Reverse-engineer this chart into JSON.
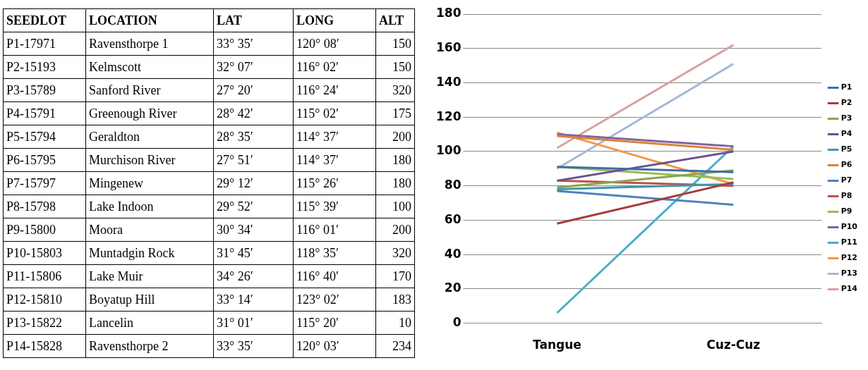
{
  "chart_data": [
    {
      "type": "other",
      "annotations": [
        "SEEDLOT",
        "LOCATION",
        "LAT",
        "LONG",
        "ALT",
        "P1-17971",
        "Ravensthorpe 1",
        "33° 35′",
        "120° 08′",
        "150",
        "P2-15193",
        "Kelmscott",
        "32° 07′",
        "116° 02′",
        "150",
        "P3-15789",
        "Sanford River",
        "27° 20′",
        "116° 24′",
        "320",
        "P4-15791",
        "Greenough River",
        "28° 42′",
        "115° 02′",
        "175",
        "P5-15794",
        "Geraldton",
        "28° 35′",
        "114° 37′",
        "200",
        "P6-15795",
        "Murchison River",
        "27° 51′",
        "114° 37′",
        "180",
        "P7-15797",
        "Mingenew",
        "29° 12′",
        "115° 26′",
        "180",
        "P8-15798",
        "Lake Indoon",
        "29° 52′",
        "115° 39′",
        "100",
        "P9-15800",
        "Moora",
        "30° 34′",
        "116° 01′",
        "200",
        "P10-15803",
        "Muntadgin Rock",
        "31° 45′",
        "118° 35′",
        "320",
        "P11-15806",
        "Lake Muir",
        "34° 26′",
        "116° 40′",
        "170",
        "P12-15810",
        "Boyatup Hill",
        "33° 14′",
        "123° 02′",
        "183",
        "P13-15822",
        "Lancelin",
        "31° 01′",
        "115° 20′",
        "10",
        "P14-15828",
        "Ravensthorpe 2",
        "33° 35′",
        "120° 03′",
        "234"
      ]
    },
    {
      "type": "line",
      "categories": [
        "Tangue",
        "Cuz-Cuz"
      ],
      "ylim": [
        0,
        180
      ],
      "yticks": [
        0,
        20,
        40,
        60,
        80,
        100,
        120,
        140,
        160,
        180
      ],
      "grid": "y",
      "legend": "right",
      "marker": "none",
      "line_style": "solid",
      "series": [
        {
          "name": "P1",
          "color": "#3f6ea8",
          "values": [
            91,
            88
          ]
        },
        {
          "name": "P2",
          "color": "#a83c3a",
          "values": [
            58,
            82
          ]
        },
        {
          "name": "P3",
          "color": "#86a84a",
          "values": [
            79,
            89
          ]
        },
        {
          "name": "P4",
          "color": "#6a5290",
          "values": [
            83,
            100
          ]
        },
        {
          "name": "P5",
          "color": "#3d97ad",
          "values": [
            78,
            81
          ]
        },
        {
          "name": "P6",
          "color": "#d9843a",
          "values": [
            109,
            101
          ]
        },
        {
          "name": "P7",
          "color": "#4f81bd",
          "values": [
            77,
            69
          ]
        },
        {
          "name": "P8",
          "color": "#c0504d",
          "values": [
            83,
            80
          ]
        },
        {
          "name": "P9",
          "color": "#9bbb59",
          "values": [
            91,
            84
          ]
        },
        {
          "name": "P10",
          "color": "#8064a2",
          "values": [
            110,
            103
          ]
        },
        {
          "name": "P11",
          "color": "#4bacc6",
          "values": [
            6,
            103
          ]
        },
        {
          "name": "P12",
          "color": "#f79646",
          "values": [
            111,
            81
          ]
        },
        {
          "name": "P13",
          "color": "#a5b8d6",
          "values": [
            90,
            151
          ]
        },
        {
          "name": "P14",
          "color": "#d9a0a0",
          "values": [
            102,
            162
          ]
        }
      ]
    }
  ]
}
